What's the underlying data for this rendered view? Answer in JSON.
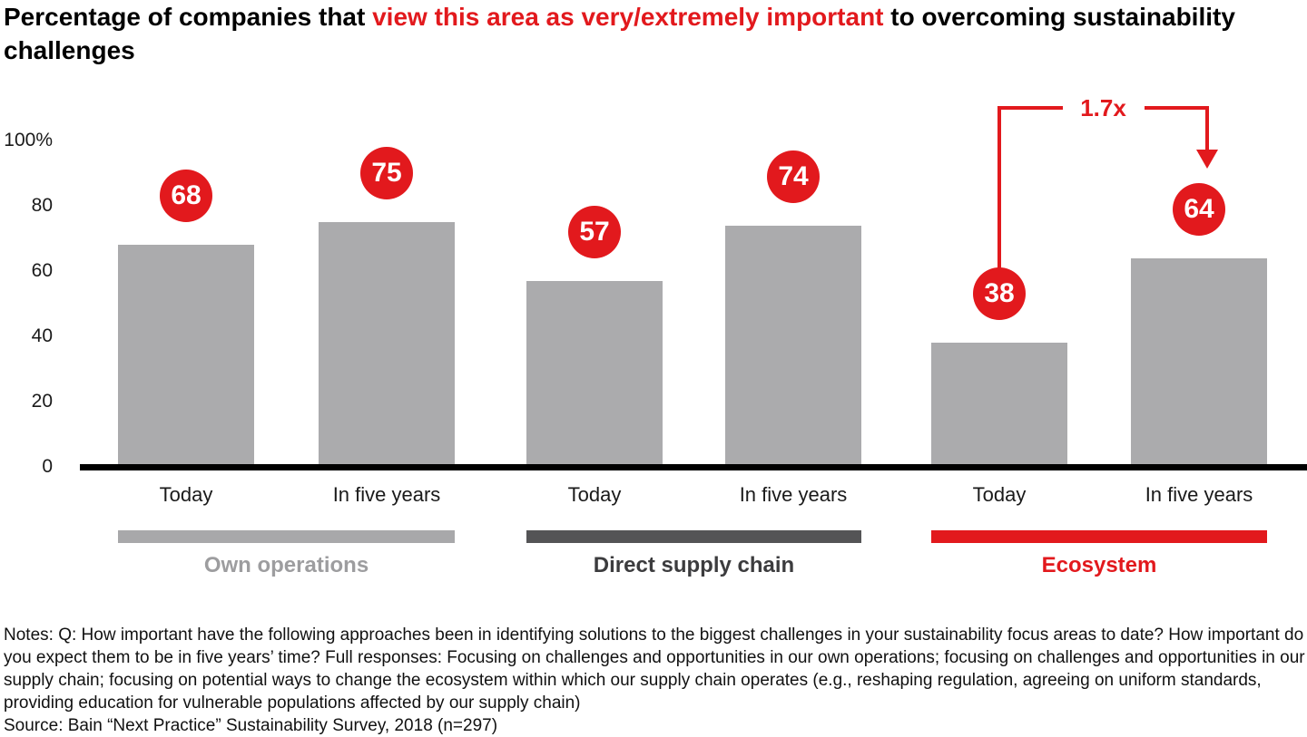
{
  "title": {
    "prefix": "Percentage of companies that ",
    "highlight": "view this area as very/extremely important",
    "suffix": " to overcoming sustainability challenges"
  },
  "chart_data": {
    "type": "bar",
    "title": "Percentage of companies that view this area as very/extremely important to overcoming sustainability challenges",
    "xlabel": "",
    "ylabel": "",
    "ylim": [
      0,
      100
    ],
    "yticks": [
      0,
      20,
      40,
      60,
      80,
      100
    ],
    "ytick_labels": [
      "0",
      "20",
      "40",
      "60",
      "80",
      "100%"
    ],
    "bar_color": "#ababad",
    "badge_color": "#e2191d",
    "groups": [
      {
        "name": "Own operations",
        "color": "#a8a8aa",
        "label_color": "#9d9d9f",
        "bars": [
          {
            "label": "Today",
            "value": 68
          },
          {
            "label": "In five years",
            "value": 75
          }
        ]
      },
      {
        "name": "Direct supply chain",
        "color": "#545456",
        "label_color": "#3c3c3e",
        "bars": [
          {
            "label": "Today",
            "value": 57
          },
          {
            "label": "In five years",
            "value": 74
          }
        ]
      },
      {
        "name": "Ecosystem",
        "color": "#e2191d",
        "label_color": "#e2191d",
        "bars": [
          {
            "label": "Today",
            "value": 38
          },
          {
            "label": "In five years",
            "value": 64
          }
        ]
      }
    ],
    "annotation": {
      "label": "1.7x",
      "from": "Ecosystem Today",
      "to": "Ecosystem In five years"
    }
  },
  "notes": "Notes: Q: How important have the following approaches been in identifying solutions to the biggest challenges in your sustainability focus areas to date? How important do you expect them to be in five years’ time? Full responses: Focusing on challenges and opportunities in our own operations; focusing on challenges and opportunities in our supply chain; focusing on potential ways to change the ecosystem within which our supply chain operates (e.g., reshaping regulation, agreeing on uniform standards, providing education for vulnerable populations affected by our supply chain)",
  "source": "Source: Bain “Next Practice” Sustainability Survey, 2018 (n=297)"
}
